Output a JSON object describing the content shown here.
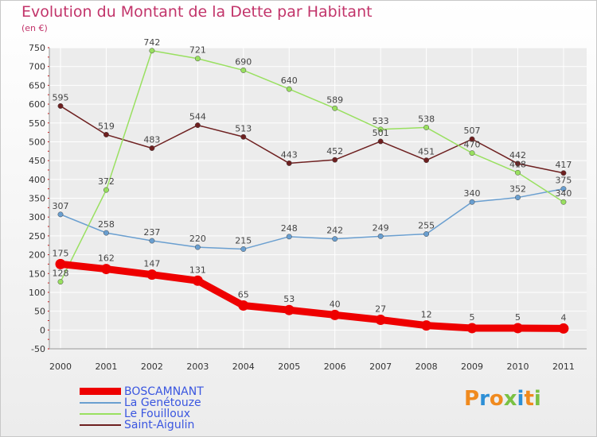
{
  "header": {
    "title": "Evolution du Montant de la Dette par Habitant",
    "unit": "(en €)"
  },
  "chart_data": {
    "type": "line",
    "title": "Evolution du Montant de la Dette par Habitant",
    "subtitle": "(en €)",
    "xlabel": "",
    "ylabel": "",
    "x": [
      "2000",
      "2001",
      "2002",
      "2003",
      "2004",
      "2005",
      "2006",
      "2007",
      "2008",
      "2009",
      "2010",
      "2011"
    ],
    "ylim": [
      -50,
      750
    ],
    "yticks": [
      -50,
      0,
      50,
      100,
      150,
      200,
      250,
      300,
      350,
      400,
      450,
      500,
      550,
      600,
      650,
      700,
      750
    ],
    "grid": true,
    "legend_position": "bottom-left",
    "series": [
      {
        "name": "BOSCAMNANT",
        "color": "#ee0000",
        "values": [
          175,
          162,
          147,
          131,
          65,
          53,
          40,
          27,
          12,
          5,
          5,
          4
        ]
      },
      {
        "name": "La Genétouze",
        "color": "#6a9fd0",
        "values": [
          307,
          258,
          237,
          220,
          215,
          248,
          242,
          249,
          255,
          340,
          352,
          375
        ]
      },
      {
        "name": "Le Fouilloux",
        "color": "#99e060",
        "values": [
          128,
          372,
          742,
          721,
          690,
          640,
          589,
          533,
          538,
          470,
          418,
          340
        ]
      },
      {
        "name": "Saint-Aigulin",
        "color": "#6e2020",
        "values": [
          595,
          519,
          483,
          544,
          513,
          443,
          452,
          501,
          451,
          507,
          442,
          417
        ]
      }
    ]
  },
  "logo": {
    "text": "Proxiti"
  }
}
